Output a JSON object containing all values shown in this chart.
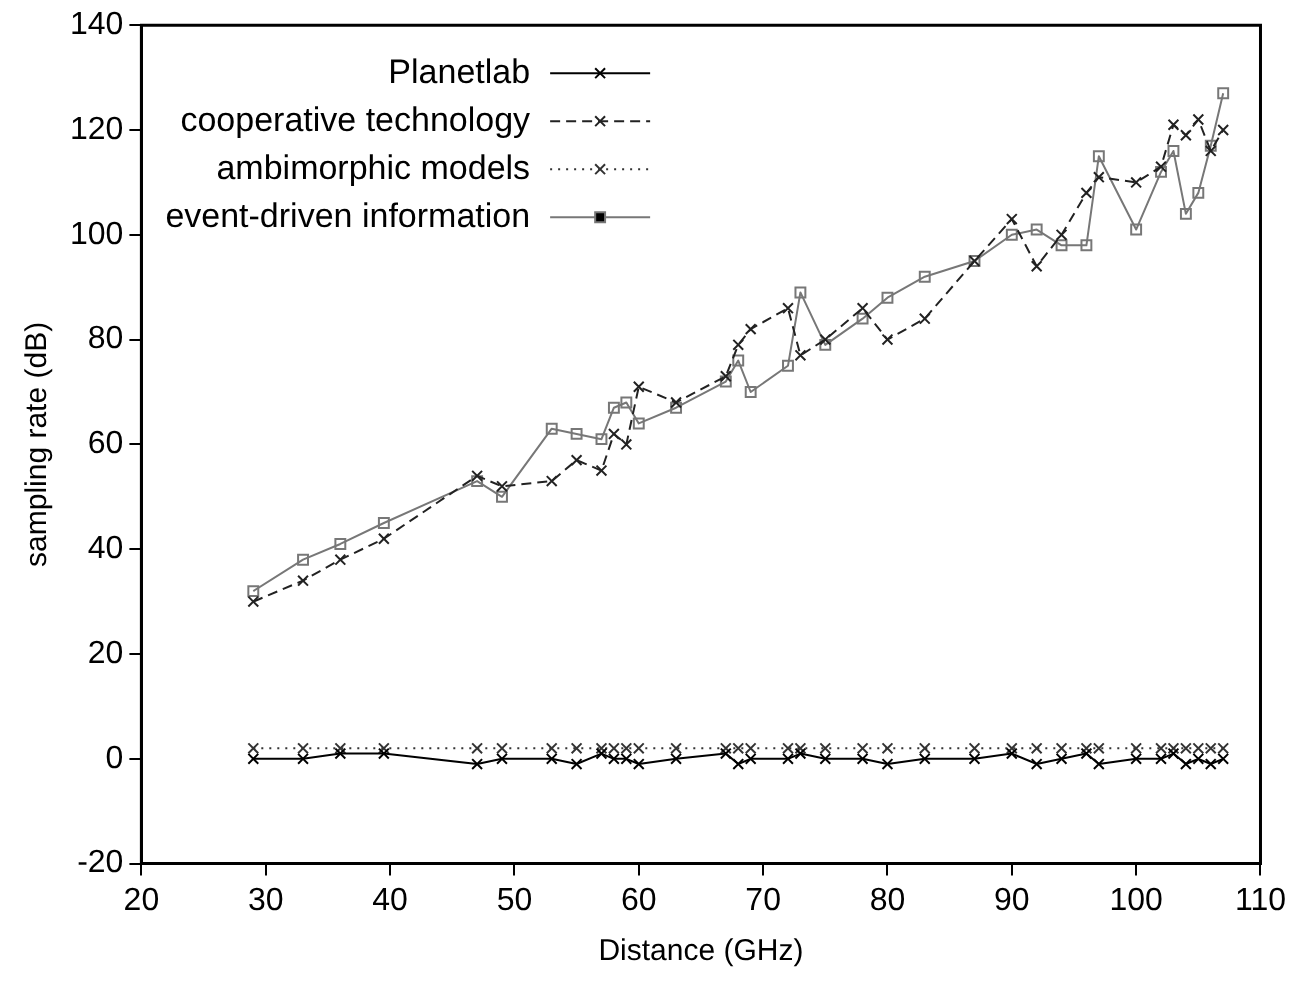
{
  "chart_data": {
    "type": "line",
    "xlabel": "Distance (GHz)",
    "ylabel": "sampling rate (dB)",
    "x": [
      29,
      33,
      36,
      39.5,
      47,
      49,
      53,
      55,
      57,
      58,
      59,
      60,
      63,
      67,
      68,
      69,
      72,
      73,
      75,
      78,
      80,
      83,
      87,
      90,
      92,
      94,
      96,
      97,
      100,
      102,
      103,
      104,
      105,
      106,
      107
    ],
    "xlim": [
      20,
      110
    ],
    "xticks": [
      20,
      30,
      40,
      50,
      60,
      70,
      80,
      90,
      100,
      110
    ],
    "ylim": [
      -20,
      140
    ],
    "yticks": [
      -20,
      0,
      20,
      40,
      60,
      80,
      100,
      120,
      140
    ],
    "grid": false,
    "legend": "top left",
    "series": [
      {
        "name": "Planetlab",
        "color": "#000000",
        "marker": "cross",
        "line_style": "solid",
        "values": [
          0,
          0,
          1,
          1,
          -1,
          0,
          0,
          -1,
          1,
          0,
          0,
          -1,
          0,
          1,
          -1,
          0,
          0,
          1,
          0,
          0,
          -1,
          0,
          0,
          1,
          -1,
          0,
          1,
          -1,
          0,
          0,
          1,
          -1,
          0,
          -1,
          0
        ]
      },
      {
        "name": "cooperative technology",
        "color": "#222222",
        "marker": "cross",
        "line_style": "dashed",
        "values": [
          30,
          34,
          38,
          42,
          54,
          52,
          53,
          57,
          55,
          62,
          60,
          71,
          68,
          73,
          79,
          82,
          86,
          77,
          80,
          86,
          80,
          84,
          95,
          103,
          94,
          100,
          108,
          111,
          110,
          113,
          121,
          119,
          122,
          116,
          120
        ]
      },
      {
        "name": "ambimorphic models",
        "color": "#333333",
        "marker": "cross",
        "line_style": "dotted",
        "values": [
          2,
          2,
          2,
          2,
          2,
          2,
          2,
          2,
          2,
          2,
          2,
          2,
          2,
          2,
          2,
          2,
          2,
          2,
          2,
          2,
          2,
          2,
          2,
          2,
          2,
          2,
          2,
          2,
          2,
          2,
          2,
          2,
          2,
          2,
          2
        ]
      },
      {
        "name": "event-driven information",
        "color": "#777777",
        "marker": "square",
        "line_style": "solid",
        "values": [
          32,
          38,
          41,
          45,
          53,
          50,
          63,
          62,
          61,
          67,
          68,
          64,
          67,
          72,
          76,
          70,
          75,
          89,
          79,
          84,
          88,
          92,
          95,
          100,
          101,
          98,
          98,
          115,
          101,
          112,
          116,
          104,
          108,
          117,
          127
        ]
      }
    ]
  }
}
